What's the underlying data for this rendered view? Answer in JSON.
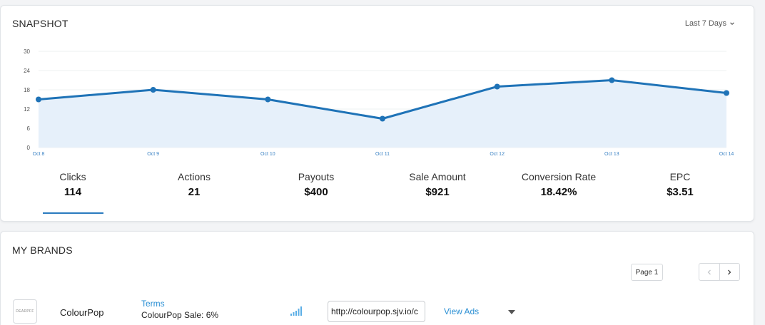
{
  "snapshot": {
    "title": "SNAPSHOT",
    "range_label": "Last 7 Days",
    "range_icon": "chevron-down-icon",
    "metrics": [
      {
        "label": "Clicks",
        "value": "114",
        "active": true
      },
      {
        "label": "Actions",
        "value": "21"
      },
      {
        "label": "Payouts",
        "value": "$400"
      },
      {
        "label": "Sale Amount",
        "value": "$921"
      },
      {
        "label": "Conversion Rate",
        "value": "18.42%"
      },
      {
        "label": "EPC",
        "value": "$3.51"
      }
    ]
  },
  "chart_data": {
    "type": "area",
    "title": "",
    "xlabel": "",
    "ylabel": "",
    "categories": [
      "Oct 8",
      "Oct 9",
      "Oct 10",
      "Oct 11",
      "Oct 12",
      "Oct 13",
      "Oct 14"
    ],
    "values": [
      15,
      18,
      15,
      9,
      19,
      21,
      17
    ],
    "ylim": [
      0,
      30
    ],
    "yticks": [
      "0",
      "6",
      "12",
      "18",
      "24",
      "30"
    ],
    "grid": true,
    "legend": "none",
    "line_color": "#1f73b7",
    "fill_color": "#e6f0fa"
  },
  "brands": {
    "title": "MY BRANDS",
    "page_label": "Page 1",
    "prev_icon": "chevron-left-icon",
    "next_icon": "chevron-right-icon",
    "rows": [
      {
        "logo_text": "DEARPFF",
        "name": "ColourPop",
        "terms_label": "Terms",
        "commission": "ColourPop Sale: 6%",
        "signal_icon": "signal-bars-icon",
        "link_value": "http://colourpop.sjv.io/c",
        "view_ads_label": "View Ads",
        "menu_icon": "caret-down-icon"
      }
    ]
  },
  "colors": {
    "accent": "#2a7bbf",
    "link": "#2a8fd4"
  }
}
